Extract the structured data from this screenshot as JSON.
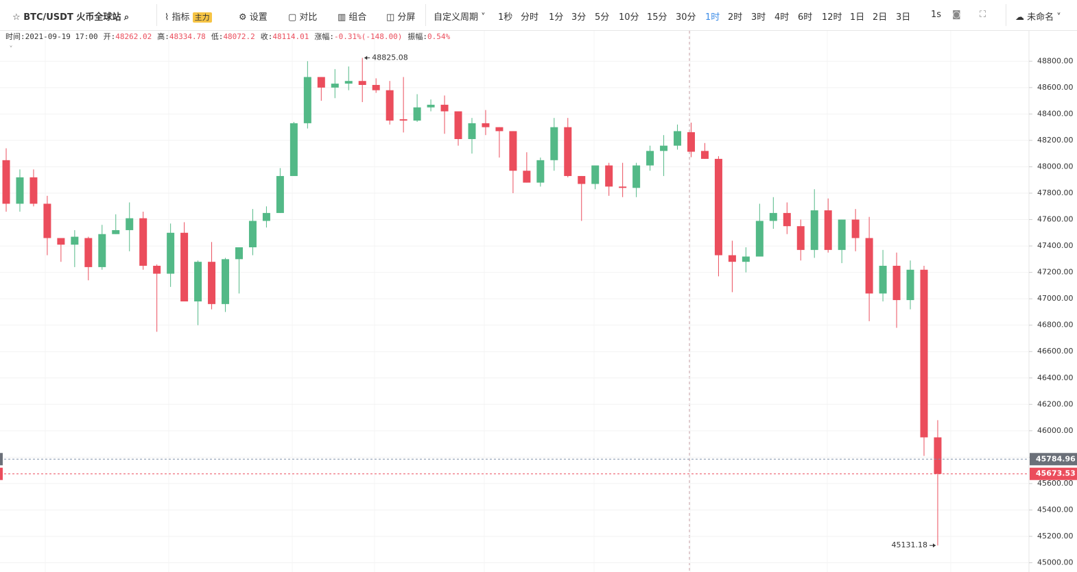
{
  "toolbar": {
    "symbol": "BTC/USDT 火币全球站",
    "indicator": "指标",
    "indicator_tag": "主力",
    "settings": "设置",
    "compare": "对比",
    "combine": "组合",
    "split": "分屏",
    "custom_period": "自定义周期",
    "periods": [
      "1秒",
      "分时",
      "1分",
      "3分",
      "5分",
      "10分",
      "15分",
      "30分",
      "1时",
      "2时",
      "3时",
      "4时",
      "6时",
      "12时",
      "1日",
      "2日",
      "3日"
    ],
    "active_period_index": 8,
    "refresh": "1s",
    "layout_name": "未命名"
  },
  "info": {
    "time_label": "时间:",
    "time": "2021-09-19 17:00",
    "open_label": "开:",
    "high_label": "高:",
    "low_label": "低:",
    "close_label": "收:",
    "change_label": "涨幅:",
    "change": "-0.31%(-148.00)",
    "amplitude_label": "振幅:",
    "amplitude": "0.54%"
  },
  "chart_data": {
    "type": "candlestick",
    "up_color": "#53b987",
    "down_color": "#eb4d5c",
    "open": [
      48050,
      47720,
      47920,
      47720,
      47460,
      47410,
      47460,
      47240,
      47490,
      47520,
      47610,
      47250,
      47190,
      47500,
      46980,
      47280,
      46960,
      47300,
      47390,
      47590,
      47650,
      47930,
      48330,
      48680,
      48600,
      48630,
      48650,
      48620,
      48580,
      48360,
      48350,
      48450,
      48470,
      48420,
      48210,
      48330,
      48300,
      48270,
      47970,
      47880,
      48050,
      48300,
      47930,
      47870,
      48010,
      47850,
      47840,
      48010,
      48120,
      48160,
      48262.02,
      48120,
      48060,
      47330,
      47280,
      47320,
      47590,
      47650,
      47550,
      47370,
      47670,
      47370,
      47600,
      47460,
      47040,
      47250,
      46990,
      47220,
      45950
    ],
    "high": [
      48140,
      47980,
      47980,
      47780,
      47460,
      47520,
      47470,
      47560,
      47640,
      47730,
      47660,
      47260,
      47570,
      47580,
      47290,
      47430,
      47310,
      47390,
      47680,
      47700,
      47990,
      48340,
      48800,
      48680,
      48740,
      48760,
      48825.08,
      48670,
      48650,
      48680,
      48550,
      48510,
      48540,
      48420,
      48370,
      48430,
      48300,
      48270,
      48110,
      48070,
      48370,
      48370,
      47930,
      48010,
      48030,
      48030,
      48030,
      48160,
      48240,
      48320,
      48334.78,
      48180,
      48080,
      47440,
      47390,
      47720,
      47770,
      47730,
      47600,
      47830,
      47760,
      47600,
      47680,
      47620,
      47370,
      47350,
      47290,
      47250,
      46080
    ],
    "low": [
      47660,
      47660,
      47700,
      47330,
      47280,
      47240,
      47140,
      47220,
      47490,
      47360,
      47220,
      46750,
      47090,
      46980,
      46800,
      46920,
      46900,
      47040,
      47330,
      47540,
      47650,
      47930,
      48290,
      48500,
      48520,
      48580,
      48490,
      48560,
      48320,
      48260,
      48340,
      48420,
      48250,
      48160,
      48100,
      48240,
      48070,
      47800,
      47880,
      47850,
      47970,
      47920,
      47590,
      47830,
      47780,
      47770,
      47770,
      47970,
      47930,
      48130,
      48072.2,
      48060,
      47170,
      47050,
      47200,
      47320,
      47530,
      47490,
      47290,
      47310,
      47350,
      47270,
      47360,
      46830,
      46980,
      46780,
      46920,
      45810,
      45131.18
    ],
    "close": [
      47720,
      47920,
      47720,
      47460,
      47410,
      47470,
      47240,
      47490,
      47520,
      47610,
      47250,
      47190,
      47500,
      46980,
      47280,
      46960,
      47300,
      47390,
      47590,
      47650,
      47930,
      48330,
      48680,
      48600,
      48630,
      48650,
      48620,
      48580,
      48350,
      48350,
      48450,
      48470,
      48420,
      48210,
      48330,
      48300,
      48270,
      47970,
      47880,
      48050,
      48300,
      47930,
      47870,
      48010,
      47850,
      47840,
      48010,
      48120,
      48160,
      48270,
      48114.01,
      48060,
      47330,
      47280,
      47320,
      47590,
      47650,
      47550,
      47370,
      47670,
      47370,
      47600,
      47460,
      47040,
      47250,
      46990,
      47220,
      45950,
      45673.53
    ],
    "mark_price": 45784.96,
    "mark_color": "#6b7079",
    "ylim": [
      44930,
      49030
    ],
    "yticks": [
      {
        "value": 45000,
        "label": "45000.00"
      },
      {
        "value": 45200,
        "label": "45200.00"
      },
      {
        "value": 45400,
        "label": "45400.00"
      },
      {
        "value": 45600,
        "label": "45600.00"
      },
      {
        "value": 45800,
        "label": "45800.00"
      },
      {
        "value": 46000,
        "label": "46000.00"
      },
      {
        "value": 46200,
        "label": "46200.00"
      },
      {
        "value": 46400,
        "label": "46400.00"
      },
      {
        "value": 46600,
        "label": "46600.00"
      },
      {
        "value": 46800,
        "label": "46800.00"
      },
      {
        "value": 47000,
        "label": "47000.00"
      },
      {
        "value": 47200,
        "label": "47200.00"
      },
      {
        "value": 47400,
        "label": "47400.00"
      },
      {
        "value": 47600,
        "label": "47600.00"
      },
      {
        "value": 47800,
        "label": "47800.00"
      },
      {
        "value": 48000,
        "label": "48000.00"
      },
      {
        "value": 48200,
        "label": "48200.00"
      },
      {
        "value": 48400,
        "label": "48400.00"
      },
      {
        "value": 48600,
        "label": "48600.00"
      },
      {
        "value": 48800,
        "label": "48800.00"
      }
    ],
    "grid": true
  }
}
